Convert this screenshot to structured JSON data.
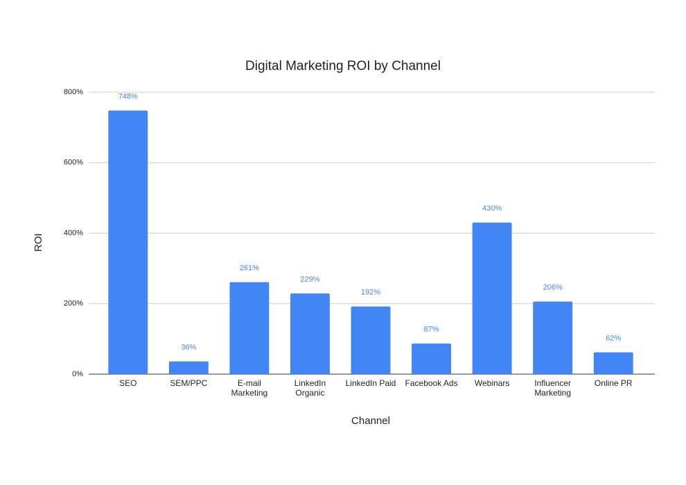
{
  "chart_data": {
    "type": "bar",
    "title": "Digital Marketing ROI by Channel",
    "x_label": "Channel",
    "y_label": "ROI",
    "categories": [
      "SEO",
      "SEM/PPC",
      "E-mail Marketing",
      "LinkedIn Organic",
      "LinkedIn Paid",
      "Facebook Ads",
      "Webinars",
      "Influencer Marketing",
      "Online PR"
    ],
    "values": [
      748,
      36,
      261,
      229,
      192,
      87,
      430,
      206,
      62
    ],
    "value_labels": [
      "748%",
      "36%",
      "261%",
      "229%",
      "192%",
      "87%",
      "430%",
      "206%",
      "62%"
    ],
    "color": "#4285f4",
    "ylim": [
      0,
      800
    ],
    "yticks": [
      {
        "value": 0,
        "label": "0%"
      },
      {
        "value": 200,
        "label": "200%"
      },
      {
        "value": 400,
        "label": "400%"
      },
      {
        "value": 600,
        "label": "600%"
      },
      {
        "value": 800,
        "label": "800%"
      }
    ],
    "grid": true
  }
}
